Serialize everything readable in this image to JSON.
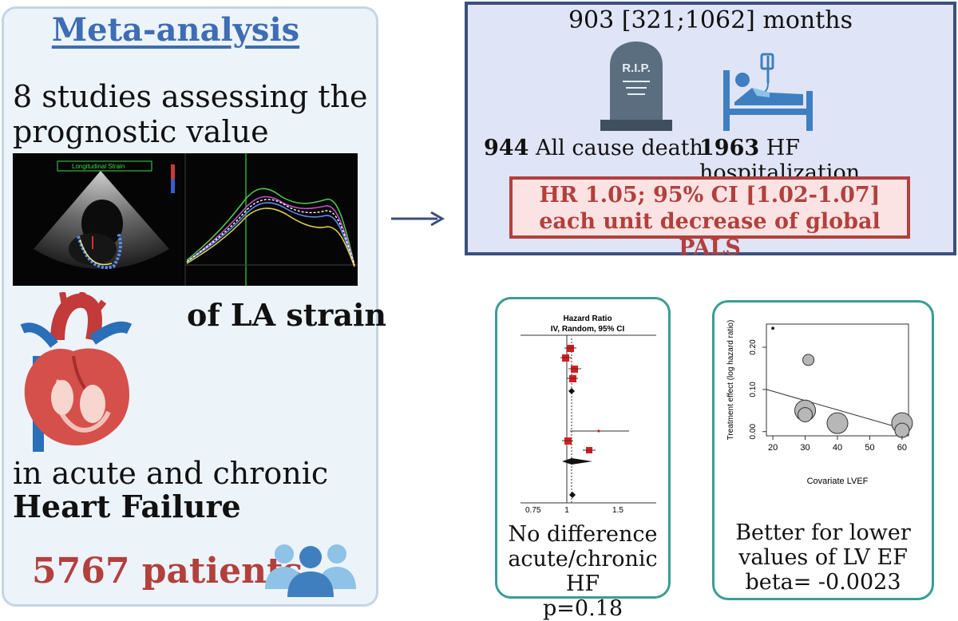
{
  "left": {
    "title": "Meta-analysis",
    "line1": "8 studies assessing the",
    "line2": "prognostic value",
    "la_strain": "of LA strain",
    "line3": "in acute and chronic",
    "line4": "Heart Failure",
    "patients": "5767 patients",
    "echo_label": "Longitudinal Strain"
  },
  "summary": {
    "followup": "903 [321;1062] months",
    "rip": "R.I.P.",
    "death_count": "944",
    "death_label": "All cause death",
    "hosp_count": "1963",
    "hosp_label": "HF hospitalization",
    "hr_line1": "HR 1.05; 95% CI [1.02-1.07]",
    "hr_line2": "each unit decrease of global PALS"
  },
  "forest": {
    "header1": "Hazard Ratio",
    "header2": "IV, Random, 95% CI",
    "ticks": [
      "0.75",
      "1",
      "1.5"
    ],
    "caption1": "No difference",
    "caption2": "acute/chronic HF",
    "caption3": "p=0.18"
  },
  "chart_data": {
    "type": "scatter",
    "title": "",
    "xlabel": "Covariate LVEF",
    "ylabel": "Treatment effect (log hazard ratio)",
    "xlim": [
      18,
      62
    ],
    "ylim": [
      -0.01,
      0.255
    ],
    "x_ticks": [
      "20",
      "30",
      "40",
      "50",
      "60"
    ],
    "y_ticks": [
      "0.00",
      "0.10",
      "0.20"
    ],
    "points": [
      {
        "x": 31,
        "y": 0.17,
        "size": "small"
      },
      {
        "x": 30,
        "y": 0.05,
        "size": "large"
      },
      {
        "x": 30,
        "y": 0.04,
        "size": "medium"
      },
      {
        "x": 40,
        "y": 0.02,
        "size": "large"
      },
      {
        "x": 60,
        "y": 0.02,
        "size": "large"
      },
      {
        "x": 60,
        "y": 0.003,
        "size": "medium"
      },
      {
        "x": 20,
        "y": 0.245,
        "size": "tiny"
      }
    ],
    "regression": {
      "x0": 18,
      "y0": 0.1,
      "x1": 62,
      "y1": 0.003
    }
  },
  "scatter_caption": {
    "caption1": "Better for lower",
    "caption2": "values of LV EF",
    "caption3": "beta= -0.0023"
  },
  "colors": {
    "title_blue": "#3e6db3",
    "red_accent": "#b2403d",
    "people_blue": "#4a90c8",
    "teal_border": "#3a9d93",
    "navy_border": "#3b4f7e"
  }
}
